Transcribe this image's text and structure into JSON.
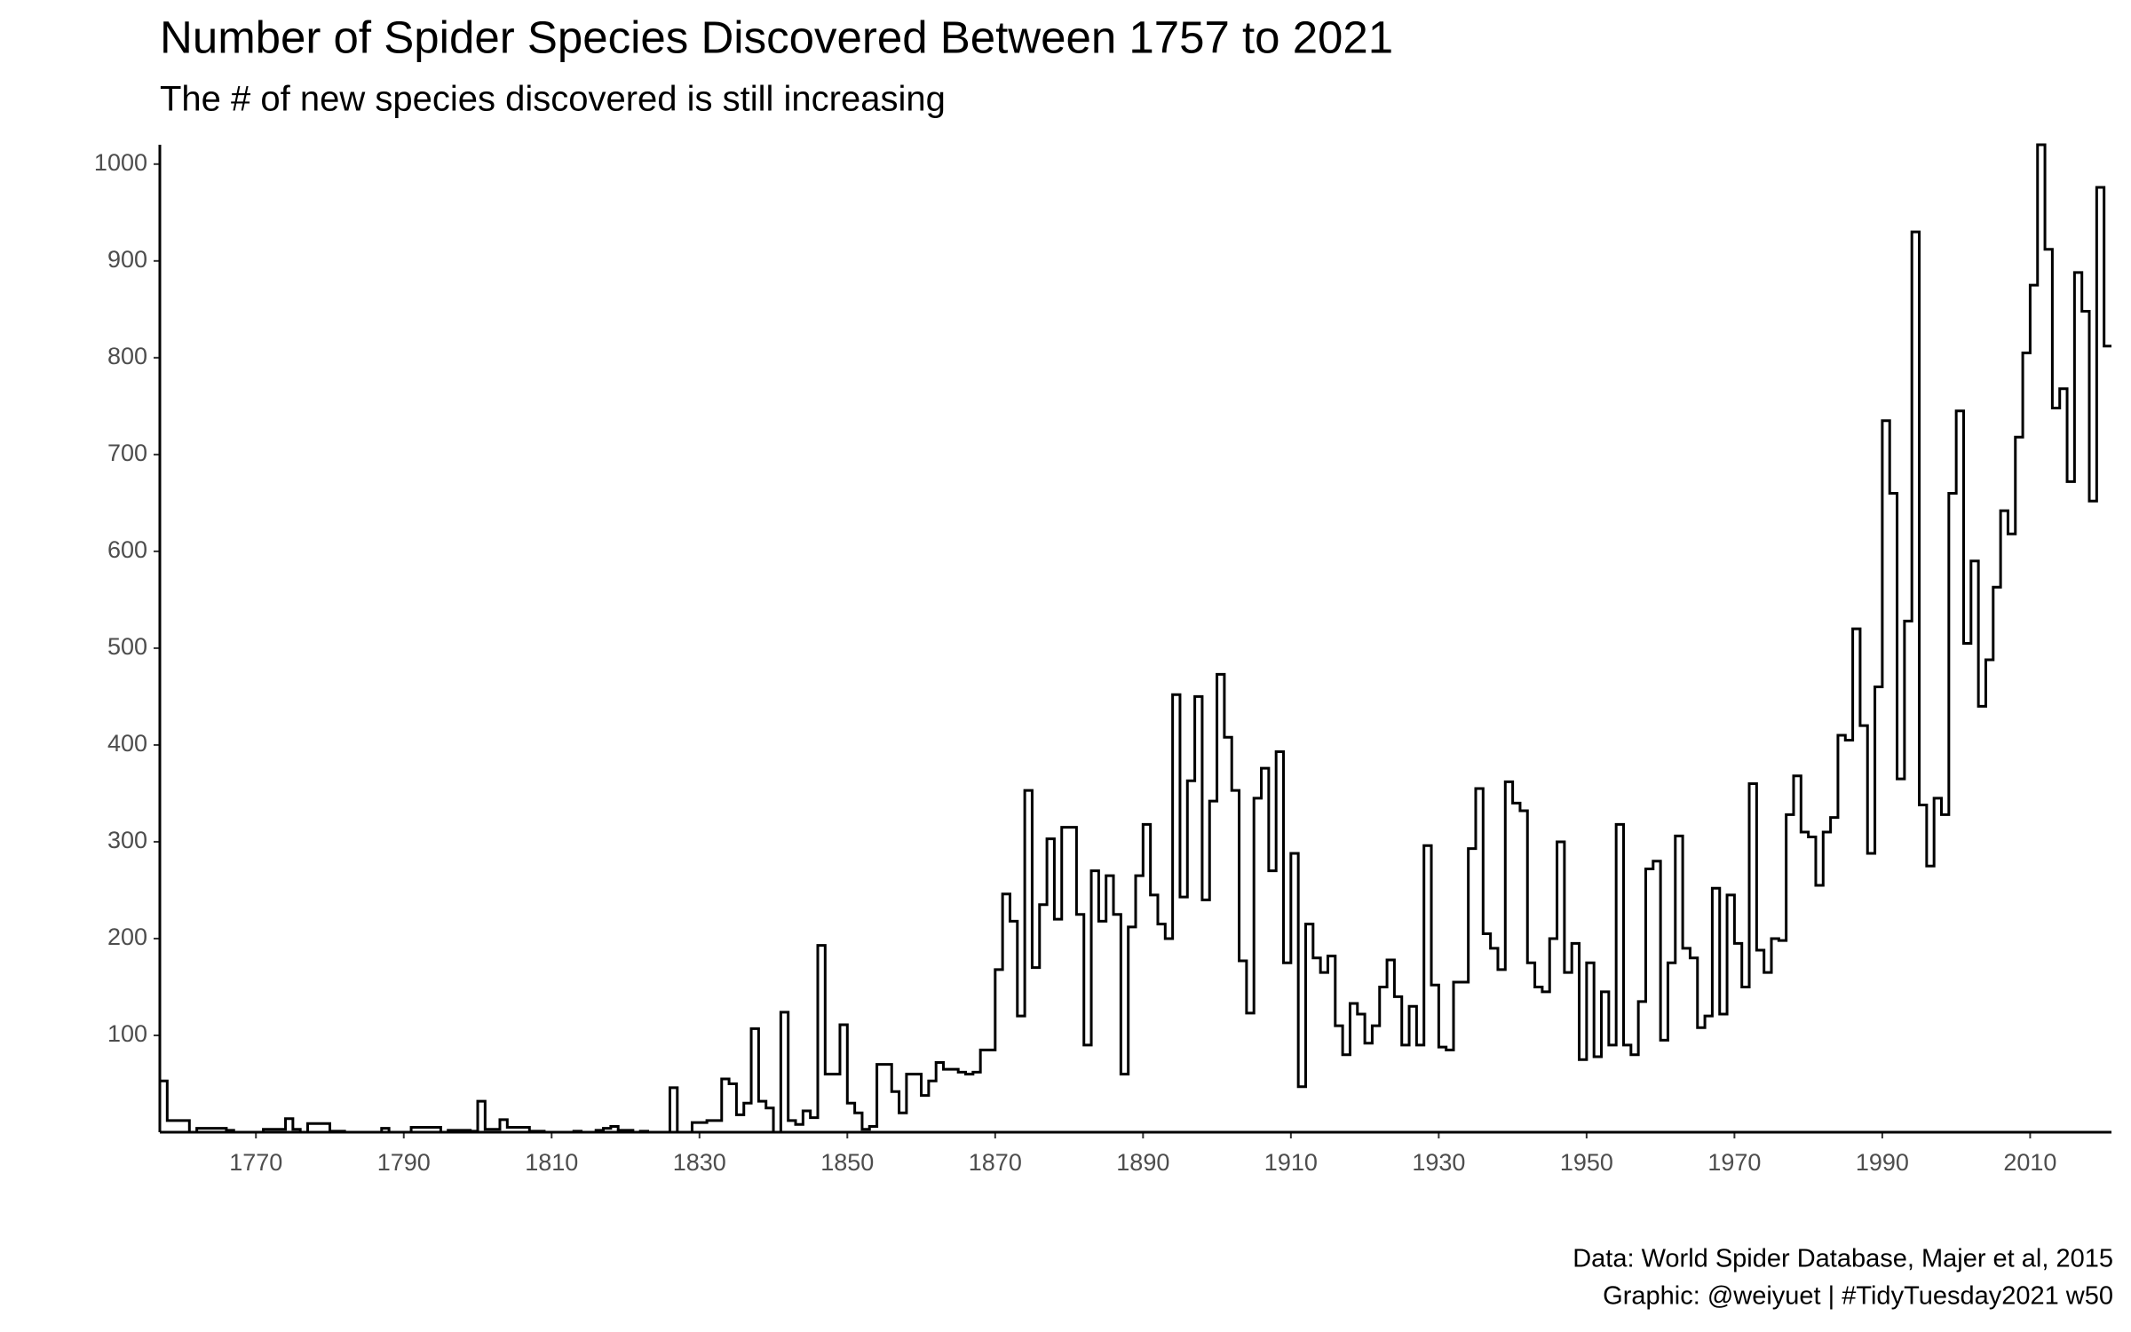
{
  "chart_data": {
    "type": "step",
    "title": "Number of Spider Species Discovered Between 1757 to 2021",
    "subtitle": "The # of new species discovered is still increasing",
    "caption": [
      "Data: World Spider Database, Majer et al, 2015",
      "Graphic: @weiyuet | #TidyTuesday2021 w50"
    ],
    "color": "#000000",
    "grid": false,
    "xlim": [
      1757,
      2021
    ],
    "ylim": [
      0,
      1020
    ],
    "xticks": [
      1770,
      1790,
      1810,
      1830,
      1850,
      1870,
      1890,
      1910,
      1930,
      1950,
      1970,
      1990,
      2010
    ],
    "yticks": [
      100,
      200,
      300,
      400,
      500,
      600,
      700,
      800,
      900,
      1000
    ],
    "x": [
      1757,
      1758,
      1759,
      1760,
      1761,
      1762,
      1763,
      1764,
      1765,
      1766,
      1767,
      1768,
      1769,
      1770,
      1771,
      1772,
      1773,
      1774,
      1775,
      1776,
      1777,
      1778,
      1779,
      1780,
      1781,
      1782,
      1783,
      1784,
      1785,
      1786,
      1787,
      1788,
      1789,
      1790,
      1791,
      1792,
      1793,
      1794,
      1795,
      1796,
      1797,
      1798,
      1799,
      1800,
      1801,
      1802,
      1803,
      1804,
      1805,
      1806,
      1807,
      1808,
      1809,
      1810,
      1811,
      1812,
      1813,
      1814,
      1815,
      1816,
      1817,
      1818,
      1819,
      1820,
      1821,
      1822,
      1823,
      1824,
      1825,
      1826,
      1827,
      1828,
      1829,
      1830,
      1831,
      1832,
      1833,
      1834,
      1835,
      1836,
      1837,
      1838,
      1839,
      1840,
      1841,
      1842,
      1843,
      1844,
      1845,
      1846,
      1847,
      1848,
      1849,
      1850,
      1851,
      1852,
      1853,
      1854,
      1855,
      1856,
      1857,
      1858,
      1859,
      1860,
      1861,
      1862,
      1863,
      1864,
      1865,
      1866,
      1867,
      1868,
      1869,
      1870,
      1871,
      1872,
      1873,
      1874,
      1875,
      1876,
      1877,
      1878,
      1879,
      1880,
      1881,
      1882,
      1883,
      1884,
      1885,
      1886,
      1887,
      1888,
      1889,
      1890,
      1891,
      1892,
      1893,
      1894,
      1895,
      1896,
      1897,
      1898,
      1899,
      1900,
      1901,
      1902,
      1903,
      1904,
      1905,
      1906,
      1907,
      1908,
      1909,
      1910,
      1911,
      1912,
      1913,
      1914,
      1915,
      1916,
      1917,
      1918,
      1919,
      1920,
      1921,
      1922,
      1923,
      1924,
      1925,
      1926,
      1927,
      1928,
      1929,
      1930,
      1931,
      1932,
      1933,
      1934,
      1935,
      1936,
      1937,
      1938,
      1939,
      1940,
      1941,
      1942,
      1943,
      1944,
      1945,
      1946,
      1947,
      1948,
      1949,
      1950,
      1951,
      1952,
      1953,
      1954,
      1955,
      1956,
      1957,
      1958,
      1959,
      1960,
      1961,
      1962,
      1963,
      1964,
      1965,
      1966,
      1967,
      1968,
      1969,
      1970,
      1971,
      1972,
      1973,
      1974,
      1975,
      1976,
      1977,
      1978,
      1979,
      1980,
      1981,
      1982,
      1983,
      1984,
      1985,
      1986,
      1987,
      1988,
      1989,
      1990,
      1991,
      1992,
      1993,
      1994,
      1995,
      1996,
      1997,
      1998,
      1999,
      2000,
      2001,
      2002,
      2003,
      2004,
      2005,
      2006,
      2007,
      2008,
      2009,
      2010,
      2011,
      2012,
      2013,
      2014,
      2015,
      2016,
      2017,
      2018,
      2019,
      2020,
      2021
    ],
    "values": [
      53,
      12,
      12,
      12,
      0,
      4,
      4,
      4,
      4,
      2,
      0,
      0,
      0,
      0,
      3,
      3,
      3,
      14,
      3,
      0,
      9,
      9,
      9,
      1,
      1,
      0,
      0,
      0,
      0,
      0,
      4,
      0,
      0,
      0,
      5,
      5,
      5,
      5,
      0,
      2,
      2,
      2,
      1,
      32,
      3,
      3,
      13,
      5,
      5,
      5,
      1,
      1,
      0,
      0,
      0,
      0,
      1,
      0,
      0,
      2,
      4,
      6,
      2,
      2,
      0,
      1,
      0,
      0,
      0,
      46,
      0,
      0,
      10,
      10,
      12,
      12,
      55,
      50,
      18,
      30,
      107,
      32,
      25,
      0,
      124,
      12,
      8,
      22,
      15,
      193,
      60,
      60,
      111,
      30,
      20,
      3,
      6,
      70,
      70,
      42,
      20,
      60,
      60,
      38,
      53,
      72,
      65,
      65,
      62,
      60,
      62,
      85,
      85,
      168,
      246,
      218,
      120,
      353,
      170,
      235,
      303,
      220,
      315,
      315,
      225,
      90,
      270,
      218,
      265,
      225,
      60,
      212,
      265,
      318,
      245,
      215,
      200,
      452,
      243,
      363,
      450,
      240,
      342,
      473,
      408,
      353,
      177,
      123,
      345,
      376,
      270,
      393,
      175,
      288,
      47,
      215,
      180,
      165,
      182,
      110,
      80,
      133,
      122,
      92,
      110,
      150,
      178,
      140,
      90,
      130,
      90,
      296,
      152,
      88,
      85,
      155,
      155,
      293,
      355,
      205,
      190,
      168,
      362,
      340,
      332,
      175,
      150,
      145,
      200,
      300,
      165,
      195,
      75,
      175,
      78,
      145,
      90,
      318,
      90,
      80,
      135,
      272,
      280,
      95,
      175,
      306,
      190,
      180,
      108,
      120,
      252,
      122,
      245,
      195,
      150,
      360,
      188,
      165,
      200,
      198,
      328,
      368,
      310,
      305,
      255,
      310,
      325,
      410,
      405,
      520,
      420,
      288,
      460,
      735,
      660,
      365,
      528,
      930,
      338,
      275,
      345,
      328,
      660,
      745,
      505,
      590,
      440,
      488,
      563,
      642,
      618,
      718,
      805,
      875,
      1020,
      912,
      748,
      768,
      672,
      888,
      848,
      652,
      976,
      812,
      812
    ]
  }
}
